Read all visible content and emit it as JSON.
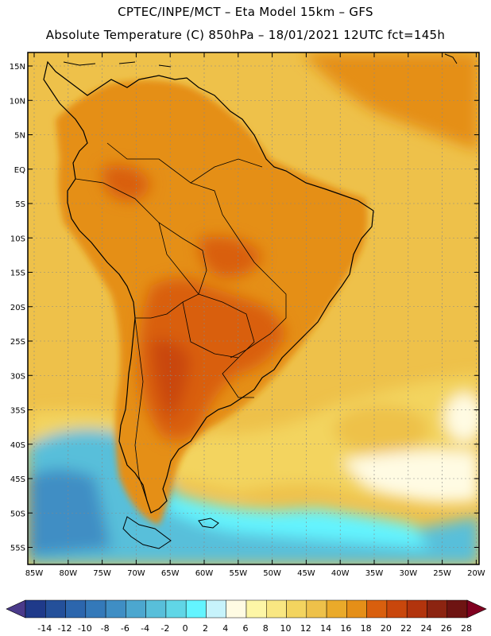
{
  "header": {
    "line1": "CPTEC/INPE/MCT –  Eta Model 15km – GFS",
    "line2": "Absolute Temperature (C) 850hPa – 18/01/2021 12UTC fct=145h"
  },
  "map": {
    "region": "South America",
    "lat_labels": [
      "15N",
      "10N",
      "5N",
      "EQ",
      "5S",
      "10S",
      "15S",
      "20S",
      "25S",
      "30S",
      "35S",
      "40S",
      "45S",
      "50S",
      "55S"
    ],
    "lon_labels": [
      "85W",
      "80W",
      "75W",
      "70W",
      "65W",
      "60W",
      "55W",
      "50W",
      "45W",
      "40W",
      "35W",
      "30W",
      "25W",
      "20W"
    ],
    "lat_values": [
      15,
      10,
      5,
      0,
      -5,
      -10,
      -15,
      -20,
      -25,
      -30,
      -35,
      -40,
      -45,
      -50,
      -55
    ],
    "lon_values": [
      -85,
      -80,
      -75,
      -70,
      -65,
      -60,
      -55,
      -50,
      -45,
      -40,
      -35,
      -30,
      -25,
      -20
    ]
  },
  "colorbar": {
    "variable": "Absolute Temperature (C)",
    "labels": [
      "-14",
      "-12",
      "-10",
      "-8",
      "-6",
      "-4",
      "-2",
      "0",
      "2",
      "4",
      "6",
      "8",
      "10",
      "12",
      "14",
      "16",
      "18",
      "20",
      "22",
      "24",
      "26",
      "28"
    ],
    "colors": [
      "#1f3a8a",
      "#24509a",
      "#2c66ad",
      "#3479b9",
      "#3f8ec4",
      "#4ca7cf",
      "#58bfda",
      "#60d6e6",
      "#63f4ff",
      "#c7f3fb",
      "#fffbe3",
      "#fdf6a6",
      "#f9e782",
      "#f3d45f",
      "#eec14a",
      "#eaaa2a",
      "#e58f18",
      "#d95f0e",
      "#c9470c",
      "#b2340d",
      "#8c2411",
      "#6e1412"
    ],
    "low_arrow_color": "#4a3a8a",
    "high_arrow_color": "#800020"
  },
  "colors": {
    "land_warm": "#e58f18",
    "land_hot": "#d95f0e",
    "ocean_mid": "#eec14a",
    "ocean_cool": "#f3d45f",
    "cold_south": "#58bfda"
  }
}
